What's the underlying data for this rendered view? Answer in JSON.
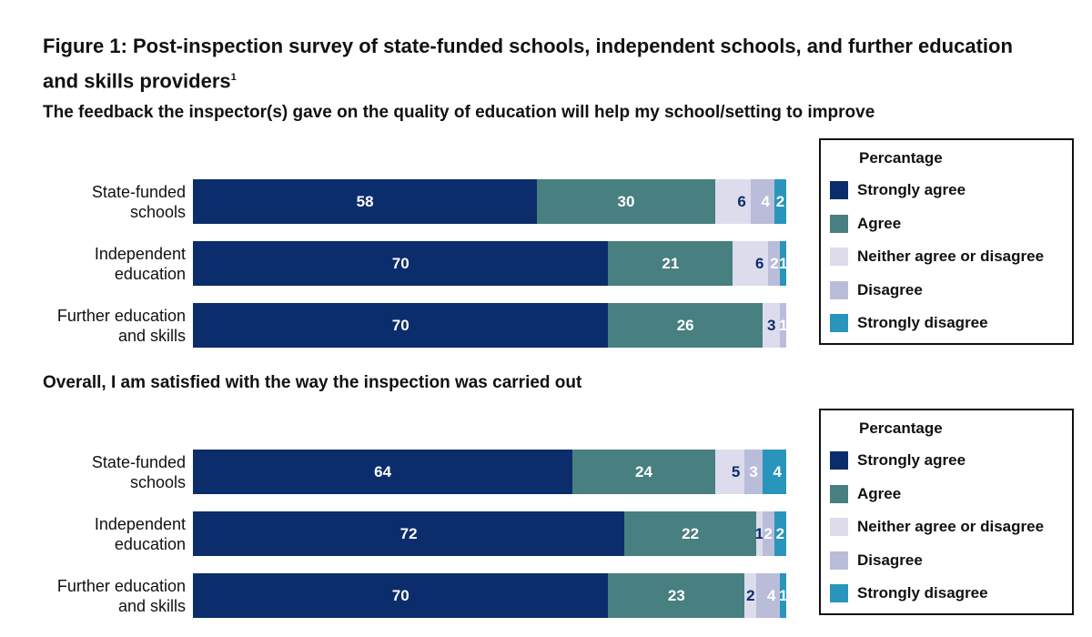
{
  "title": "Figure 1:  Post-inspection survey of state-funded schools, independent schools, and further education and skills providers",
  "title_sup": "1",
  "legend_title": "Percantage",
  "colors": {
    "Strongly agree": "#0c2d6b",
    "Agree": "#487f80",
    "Neither agree or disagree": "#dcdcec",
    "Disagree": "#b9bdd9",
    "Strongly disagree": "#2995bc"
  },
  "label_colors": [
    "#ffffff",
    "#ffffff",
    "#0c2d6b",
    "#ffffff",
    "#ffffff"
  ],
  "chart_data": [
    {
      "type": "bar",
      "orientation": "horizontal",
      "stacked": true,
      "title": "The feedback the inspector(s) gave on the quality of education will help my school/setting to improve",
      "categories": [
        "State-funded schools",
        "Independent education",
        "Further education and skills"
      ],
      "series": [
        {
          "name": "Strongly agree",
          "values": [
            58,
            70,
            70
          ]
        },
        {
          "name": "Agree",
          "values": [
            30,
            21,
            26
          ]
        },
        {
          "name": "Neither agree or disagree",
          "values": [
            6,
            6,
            3
          ]
        },
        {
          "name": "Disagree",
          "values": [
            4,
            2,
            1
          ]
        },
        {
          "name": "Strongly disagree",
          "values": [
            2,
            1,
            null
          ]
        }
      ],
      "legend": "right"
    },
    {
      "type": "bar",
      "orientation": "horizontal",
      "stacked": true,
      "title": "Overall, I am satisfied with the way the inspection was carried out",
      "categories": [
        "State-funded schools",
        "Independent education",
        "Further education and skills"
      ],
      "series": [
        {
          "name": "Strongly agree",
          "values": [
            64,
            72,
            70
          ]
        },
        {
          "name": "Agree",
          "values": [
            24,
            22,
            23
          ]
        },
        {
          "name": "Neither agree or disagree",
          "values": [
            5,
            1,
            2
          ]
        },
        {
          "name": "Disagree",
          "values": [
            3,
            2,
            4
          ]
        },
        {
          "name": "Strongly disagree",
          "values": [
            4,
            2,
            1
          ]
        }
      ],
      "legend": "right"
    }
  ]
}
